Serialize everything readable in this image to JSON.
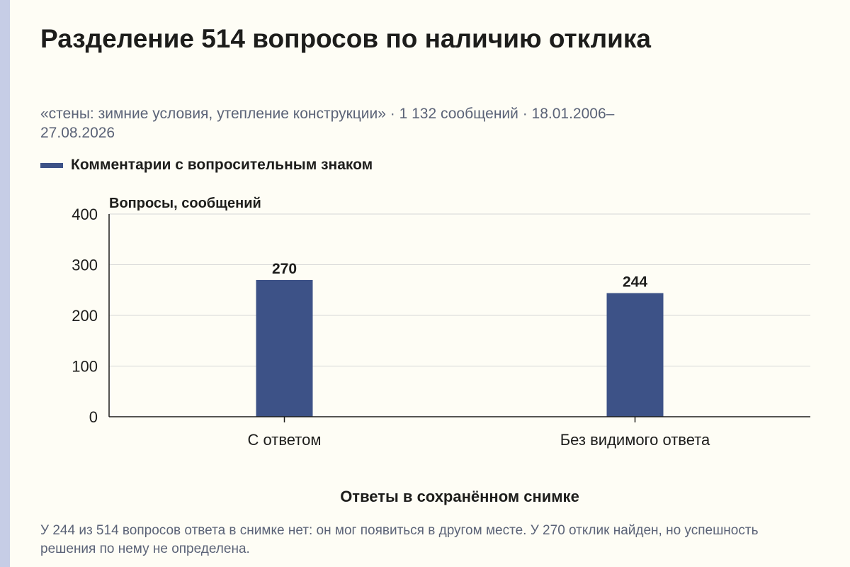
{
  "title": "Разделение 514 вопросов по наличию отклика",
  "subtitle": "«стены: зимние условия, утепление конструкции» · 1 132 сообщений · 18.01.2006–27.08.2026",
  "note": "У 244 из 514 вопросов ответа в снимке нет: он мог появиться в другом месте. У 270 отклик найден, но успешность решения по нему не определена.",
  "colors": {
    "bar": "#3d5287",
    "grid": "#d6d6d6",
    "axis": "#1d1d1b"
  },
  "chart_data": {
    "type": "bar",
    "categories": [
      "С ответом",
      "Без видимого ответа"
    ],
    "series": [
      {
        "name": "Комментарии с вопросительным знаком",
        "values": [
          270,
          244
        ]
      }
    ],
    "data_labels": [
      "270",
      "244"
    ],
    "ylabel": "Вопросы, сообщений",
    "xlabel": "Ответы в сохранённом снимке",
    "ylim": [
      0,
      400
    ],
    "yticks": [
      0,
      100,
      200,
      300,
      400
    ],
    "grid": true,
    "legend_position": "top-left"
  }
}
